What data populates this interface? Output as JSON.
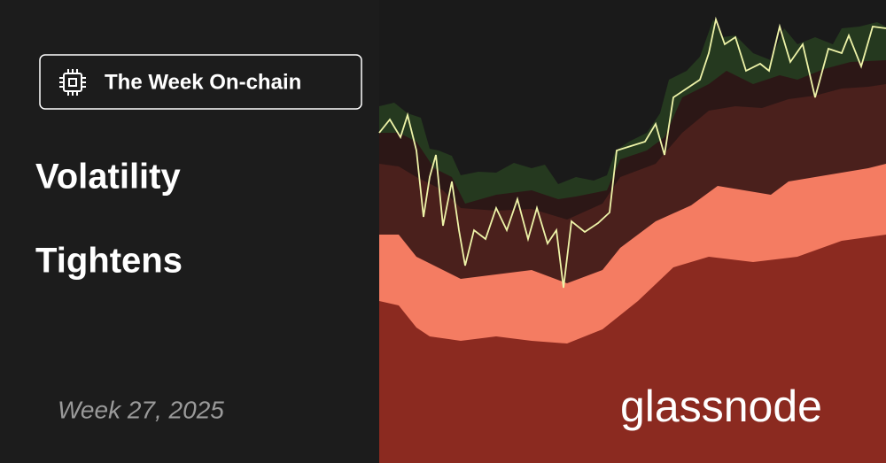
{
  "badge": {
    "label": "The Week On-chain"
  },
  "title": {
    "line1": "Volatility",
    "line2": "Tightens"
  },
  "week": "Week 27, 2025",
  "brand": "glassnode"
}
